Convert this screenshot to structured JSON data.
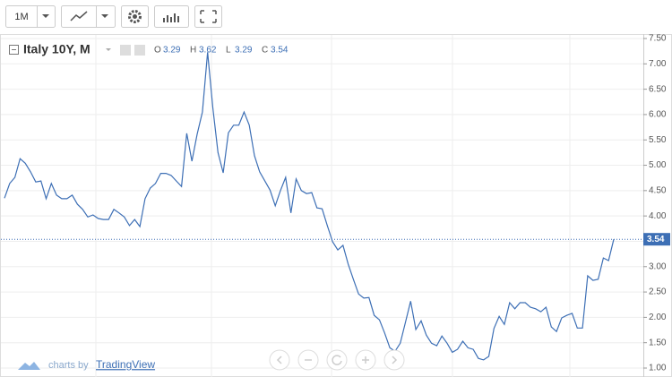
{
  "toolbar": {
    "interval": "1M"
  },
  "chart_data": {
    "type": "line",
    "title": "Italy 10Y, M",
    "ohlc": [
      {
        "label": "O",
        "value": 3.29
      },
      {
        "label": "H",
        "value": 3.62
      },
      {
        "label": "L",
        "value": 3.29
      },
      {
        "label": "C",
        "value": 3.54
      }
    ],
    "color": "#3d6fb5",
    "grid": true,
    "ylim": [
      0.9,
      7.55
    ],
    "yticks": [
      {
        "value": 1,
        "label": "1.00"
      },
      {
        "value": 1.5,
        "label": "1.50"
      },
      {
        "value": 2,
        "label": "2.00"
      },
      {
        "value": 2.5,
        "label": "2.50"
      },
      {
        "value": 3,
        "label": "3.00"
      },
      {
        "value": 3.5,
        "label": "3.50"
      },
      {
        "value": 4,
        "label": "4.00"
      },
      {
        "value": 4.5,
        "label": "4.50"
      },
      {
        "value": 5,
        "label": "5.00"
      },
      {
        "value": 5.5,
        "label": "5.50"
      },
      {
        "value": 6,
        "label": "6.00"
      },
      {
        "value": 6.5,
        "label": "6.50"
      },
      {
        "value": 7,
        "label": "7.00"
      },
      {
        "value": 7.5,
        "label": "7.50"
      }
    ],
    "last_price": 3.54,
    "values": [
      4.35,
      4.64,
      4.76,
      5.13,
      5.04,
      4.87,
      4.67,
      4.69,
      4.34,
      4.64,
      4.41,
      4.34,
      4.34,
      4.41,
      4.23,
      4.13,
      3.98,
      4.02,
      3.95,
      3.93,
      3.93,
      4.13,
      4.06,
      3.98,
      3.81,
      3.93,
      3.79,
      4.34,
      4.55,
      4.64,
      4.84,
      4.84,
      4.8,
      4.69,
      4.58,
      5.63,
      5.08,
      5.61,
      6.05,
      7.23,
      6.14,
      5.25,
      4.85,
      5.64,
      5.79,
      5.79,
      6.05,
      5.79,
      5.19,
      4.87,
      4.69,
      4.51,
      4.2,
      4.5,
      4.76,
      4.06,
      4.73,
      4.5,
      4.44,
      4.46,
      4.16,
      4.14,
      3.81,
      3.49,
      3.33,
      3.42,
      3.05,
      2.75,
      2.46,
      2.38,
      2.39,
      2.04,
      1.95,
      1.69,
      1.4,
      1.33,
      1.49,
      1.9,
      2.32,
      1.76,
      1.93,
      1.65,
      1.49,
      1.44,
      1.63,
      1.49,
      1.31,
      1.37,
      1.53,
      1.4,
      1.37,
      1.19,
      1.16,
      1.23,
      1.78,
      2.02,
      1.86,
      2.29,
      2.17,
      2.29,
      2.29,
      2.2,
      2.17,
      2.11,
      2.2,
      1.81,
      1.72,
      1.99,
      2.04,
      2.08,
      1.79,
      1.79,
      2.82,
      2.73,
      2.75,
      3.17,
      3.12,
      3.54
    ]
  },
  "footer": {
    "prefix": "charts by",
    "brand": "TradingView"
  }
}
